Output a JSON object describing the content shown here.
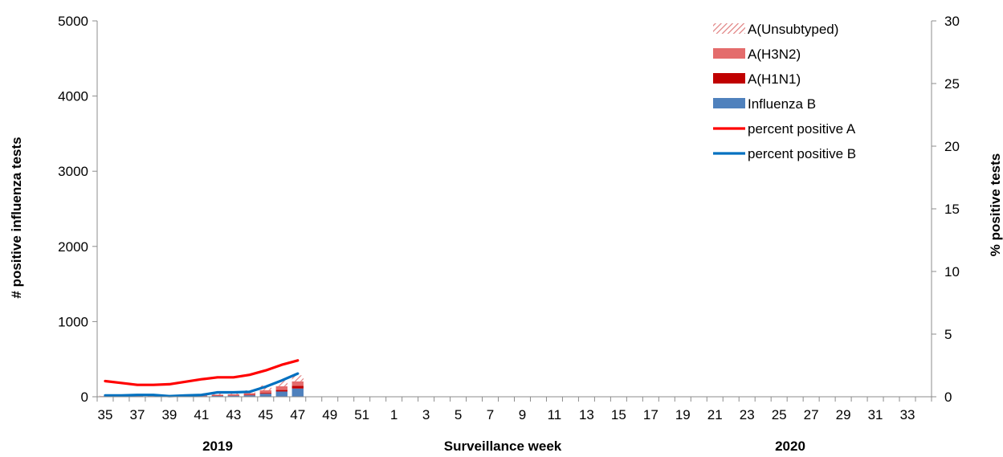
{
  "chart_data": {
    "type": "bar",
    "stacked": true,
    "weeks": [
      "35",
      "36",
      "37",
      "38",
      "39",
      "40",
      "41",
      "42",
      "43",
      "44",
      "45",
      "46",
      "47",
      "48",
      "49",
      "50",
      "51",
      "52",
      "1",
      "2",
      "3",
      "4",
      "5",
      "6",
      "7",
      "8",
      "9",
      "10",
      "11",
      "12",
      "13",
      "14",
      "15",
      "16",
      "17",
      "18",
      "19",
      "20",
      "21",
      "22",
      "23",
      "24",
      "25",
      "26",
      "27",
      "28",
      "29",
      "30",
      "31",
      "32",
      "33",
      "34"
    ],
    "x_tick_labels": [
      "35",
      "37",
      "39",
      "41",
      "43",
      "45",
      "47",
      "49",
      "51",
      "1",
      "3",
      "5",
      "7",
      "9",
      "11",
      "13",
      "15",
      "17",
      "19",
      "21",
      "23",
      "25",
      "27",
      "29",
      "31",
      "33"
    ],
    "series": [
      {
        "name": "Influenza B",
        "axis": "left",
        "kind": "bar",
        "color": "#4f81bd",
        "values": [
          5,
          5,
          8,
          6,
          5,
          6,
          8,
          12,
          14,
          20,
          40,
          70,
          110
        ]
      },
      {
        "name": "A(H1N1)",
        "axis": "left",
        "kind": "bar",
        "color": "#c00000",
        "values": [
          1,
          1,
          2,
          1,
          1,
          2,
          2,
          4,
          5,
          8,
          12,
          20,
          35
        ]
      },
      {
        "name": "A(H3N2)",
        "axis": "left",
        "kind": "bar",
        "color": "#e46c6c",
        "values": [
          3,
          3,
          5,
          4,
          4,
          6,
          8,
          12,
          15,
          20,
          35,
          50,
          60
        ]
      },
      {
        "name": "A(Unsubtyped)",
        "axis": "left",
        "kind": "bar",
        "color": "#e8a3a3",
        "pattern": "hatched",
        "values": [
          8,
          8,
          12,
          10,
          10,
          14,
          16,
          40,
          36,
          38,
          65,
          75,
          80
        ]
      },
      {
        "name": "percent positive A",
        "axis": "right",
        "kind": "line",
        "color": "#ff0000",
        "values": [
          1.25,
          1.1,
          0.95,
          0.95,
          1.0,
          1.2,
          1.4,
          1.55,
          1.55,
          1.75,
          2.1,
          2.55,
          2.9
        ]
      },
      {
        "name": "percent positive B",
        "axis": "right",
        "kind": "line",
        "color": "#0070c0",
        "values": [
          0.1,
          0.1,
          0.15,
          0.15,
          0.05,
          0.1,
          0.15,
          0.35,
          0.35,
          0.4,
          0.8,
          1.3,
          1.85
        ]
      }
    ],
    "ylim_left": [
      0,
      5000
    ],
    "yticks_left": [
      "0",
      "1000",
      "2000",
      "3000",
      "4000",
      "5000"
    ],
    "ylim_right": [
      0,
      30
    ],
    "yticks_right": [
      "0",
      "5",
      "10",
      "15",
      "20",
      "25",
      "30"
    ],
    "ylabel_left": "# positive influenza tests",
    "ylabel_right": "% positive tests",
    "xlabel": "Surveillance week",
    "year_labels": [
      "2019",
      "2020"
    ],
    "legend_order": [
      "A(Unsubtyped)",
      "A(H3N2)",
      "A(H1N1)",
      "Influenza B",
      "percent positive A",
      "percent positive B"
    ],
    "legend_position": "top-right",
    "grid": false
  }
}
